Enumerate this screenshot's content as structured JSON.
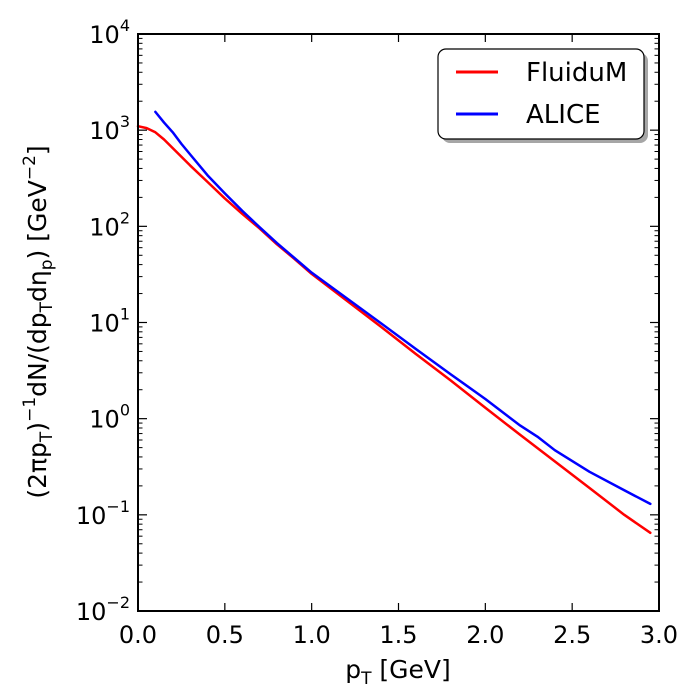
{
  "chart_data": {
    "type": "line",
    "title": "",
    "xlabel": "p_T [GeV]",
    "ylabel": "(2πp_T)^-1 dN/(dp_T dη_p) [GeV^-2]",
    "xlabel_parts": {
      "p": "p",
      "sub": "T",
      "unit": " [GeV]"
    },
    "ylabel_parts": {
      "a": "(2πp",
      "a_sub": "T",
      "a2": ")",
      "exp1": "−1",
      "b": "dN/(dp",
      "b_sub": "T",
      "b2": "dη",
      "b_sub2": "p",
      "c": ") [GeV",
      "exp2": "−2",
      "d": "]"
    },
    "xlim": [
      0.0,
      3.0
    ],
    "ylim": [
      0.01,
      10000
    ],
    "yscale": "log",
    "grid": false,
    "legend_position": "top-right",
    "x_ticks": [
      "0.0",
      "0.5",
      "1.0",
      "1.5",
      "2.0",
      "2.5",
      "3.0"
    ],
    "y_ticks": [
      {
        "base": "10",
        "exp": "−2"
      },
      {
        "base": "10",
        "exp": "−1"
      },
      {
        "base": "10",
        "exp": "0"
      },
      {
        "base": "10",
        "exp": "1"
      },
      {
        "base": "10",
        "exp": "2"
      },
      {
        "base": "10",
        "exp": "3"
      },
      {
        "base": "10",
        "exp": "4"
      }
    ],
    "series": [
      {
        "name": "FluiduM",
        "color": "#ff0000",
        "x": [
          0.0,
          0.05,
          0.1,
          0.15,
          0.2,
          0.3,
          0.4,
          0.5,
          0.6,
          0.7,
          0.8,
          0.9,
          1.0,
          1.2,
          1.4,
          1.6,
          1.8,
          2.0,
          2.2,
          2.4,
          2.6,
          2.8,
          2.95
        ],
        "y": [
          1100,
          1050,
          950,
          800,
          650,
          430,
          290,
          195,
          135,
          95,
          65,
          46,
          32,
          17,
          9.0,
          4.7,
          2.5,
          1.3,
          0.68,
          0.36,
          0.19,
          0.1,
          0.065
        ]
      },
      {
        "name": "ALICE",
        "color": "#0000ff",
        "x": [
          0.1,
          0.15,
          0.2,
          0.25,
          0.3,
          0.4,
          0.5,
          0.6,
          0.7,
          0.8,
          0.9,
          1.0,
          1.2,
          1.4,
          1.6,
          1.8,
          2.0,
          2.2,
          2.3,
          2.4,
          2.6,
          2.8,
          2.95
        ],
        "y": [
          1550,
          1200,
          950,
          720,
          560,
          340,
          220,
          145,
          98,
          67,
          47,
          33,
          18,
          9.8,
          5.3,
          2.9,
          1.6,
          0.85,
          0.65,
          0.47,
          0.28,
          0.18,
          0.13
        ]
      }
    ]
  }
}
